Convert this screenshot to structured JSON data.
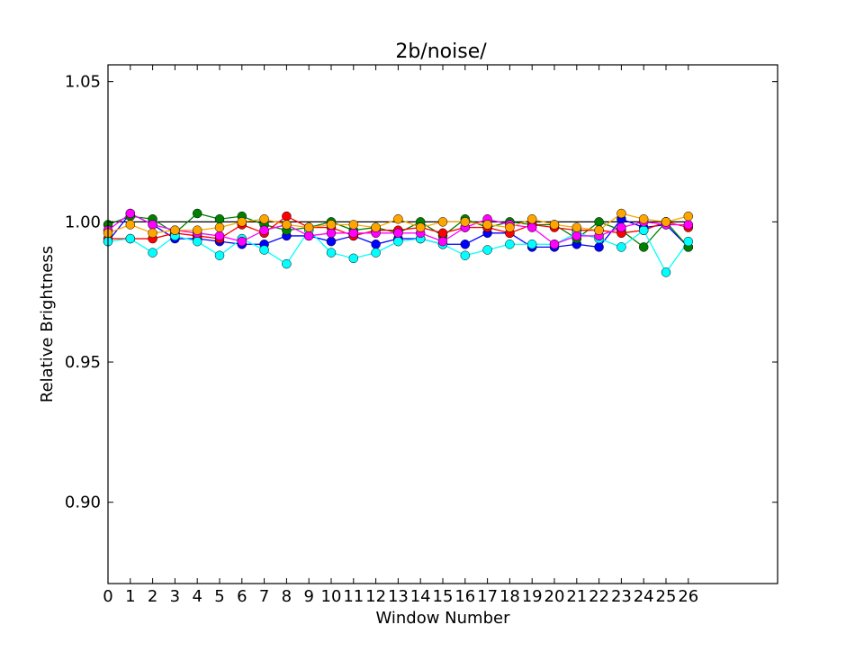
{
  "chart_data": {
    "type": "line",
    "title": "2b/noise/",
    "xlabel": "Window Number",
    "ylabel": "Relative Brightness",
    "xlim": [
      0,
      30
    ],
    "ylim": [
      0.871,
      1.056
    ],
    "yticks": [
      "0.90",
      "0.95",
      "1.00",
      "1.05"
    ],
    "ytick_values": [
      0.9,
      0.95,
      1.0,
      1.05
    ],
    "x": [
      0,
      1,
      2,
      3,
      4,
      5,
      6,
      7,
      8,
      9,
      10,
      11,
      12,
      13,
      14,
      15,
      16,
      17,
      18,
      19,
      20,
      21,
      22,
      23,
      24,
      25,
      26
    ],
    "xtick_labels": [
      "0",
      "1",
      "2",
      "3",
      "4",
      "5",
      "6",
      "7",
      "8",
      "9",
      "10",
      "11",
      "12",
      "13",
      "14",
      "15",
      "16",
      "17",
      "18",
      "19",
      "20",
      "21",
      "22",
      "23",
      "24",
      "25",
      "26"
    ],
    "grid": false,
    "series": [
      {
        "color": "#000000",
        "marker": false,
        "values": [
          1.0,
          1.0,
          1.0,
          1.0,
          1.0,
          1.0,
          1.0,
          1.0,
          1.0,
          1.0,
          1.0,
          1.0,
          1.0,
          1.0,
          1.0,
          1.0,
          1.0,
          1.0,
          1.0,
          1.0,
          1.0,
          1.0,
          1.0,
          1.0,
          1.0,
          1.0,
          1.0
        ]
      },
      {
        "color": "#0000ff",
        "marker": true,
        "values": [
          0.993,
          1.003,
          0.999,
          0.994,
          0.994,
          0.993,
          0.992,
          0.992,
          0.995,
          0.995,
          0.993,
          0.995,
          0.992,
          0.994,
          0.994,
          0.992,
          0.992,
          0.996,
          0.996,
          0.991,
          0.991,
          0.992,
          0.991,
          1.001,
          0.998,
          0.999,
          0.991
        ]
      },
      {
        "color": "#008000",
        "marker": true,
        "values": [
          0.999,
          1.002,
          1.001,
          0.996,
          1.003,
          1.001,
          1.002,
          0.999,
          0.997,
          0.998,
          1.0,
          0.997,
          0.998,
          0.996,
          1.0,
          0.995,
          1.001,
          0.998,
          1.0,
          0.999,
          0.999,
          0.994,
          1.0,
          0.997,
          0.991,
          1.0,
          0.991
        ]
      },
      {
        "color": "#ff0000",
        "marker": true,
        "values": [
          0.994,
          0.994,
          0.994,
          0.996,
          0.995,
          0.994,
          0.999,
          0.996,
          1.002,
          0.998,
          0.998,
          0.995,
          0.997,
          0.997,
          0.998,
          0.996,
          0.998,
          0.998,
          0.996,
          0.999,
          0.998,
          0.997,
          0.997,
          0.996,
          0.997,
          1.0,
          0.998
        ]
      },
      {
        "color": "#00ffff",
        "marker": true,
        "values": [
          0.993,
          0.994,
          0.989,
          0.995,
          0.993,
          0.988,
          0.994,
          0.99,
          0.985,
          0.997,
          0.989,
          0.987,
          0.989,
          0.993,
          0.994,
          0.992,
          0.988,
          0.99,
          0.992,
          0.992,
          0.992,
          0.996,
          0.994,
          0.991,
          0.997,
          0.982,
          0.993
        ]
      },
      {
        "color": "#ff00ff",
        "marker": true,
        "values": [
          0.997,
          1.003,
          0.999,
          0.997,
          0.996,
          0.995,
          0.993,
          0.997,
          0.999,
          0.995,
          0.996,
          0.996,
          0.996,
          0.996,
          0.996,
          0.993,
          0.998,
          1.001,
          0.999,
          0.998,
          0.992,
          0.995,
          0.995,
          0.998,
          1.0,
          0.999,
          0.999
        ]
      },
      {
        "color": "#ffa500",
        "marker": true,
        "values": [
          0.996,
          0.999,
          0.996,
          0.997,
          0.997,
          0.998,
          1.0,
          1.001,
          0.999,
          0.998,
          0.999,
          0.999,
          0.998,
          1.001,
          0.998,
          1.0,
          1.0,
          0.999,
          0.998,
          1.001,
          0.999,
          0.998,
          0.997,
          1.003,
          1.001,
          1.0,
          1.002
        ]
      }
    ]
  }
}
